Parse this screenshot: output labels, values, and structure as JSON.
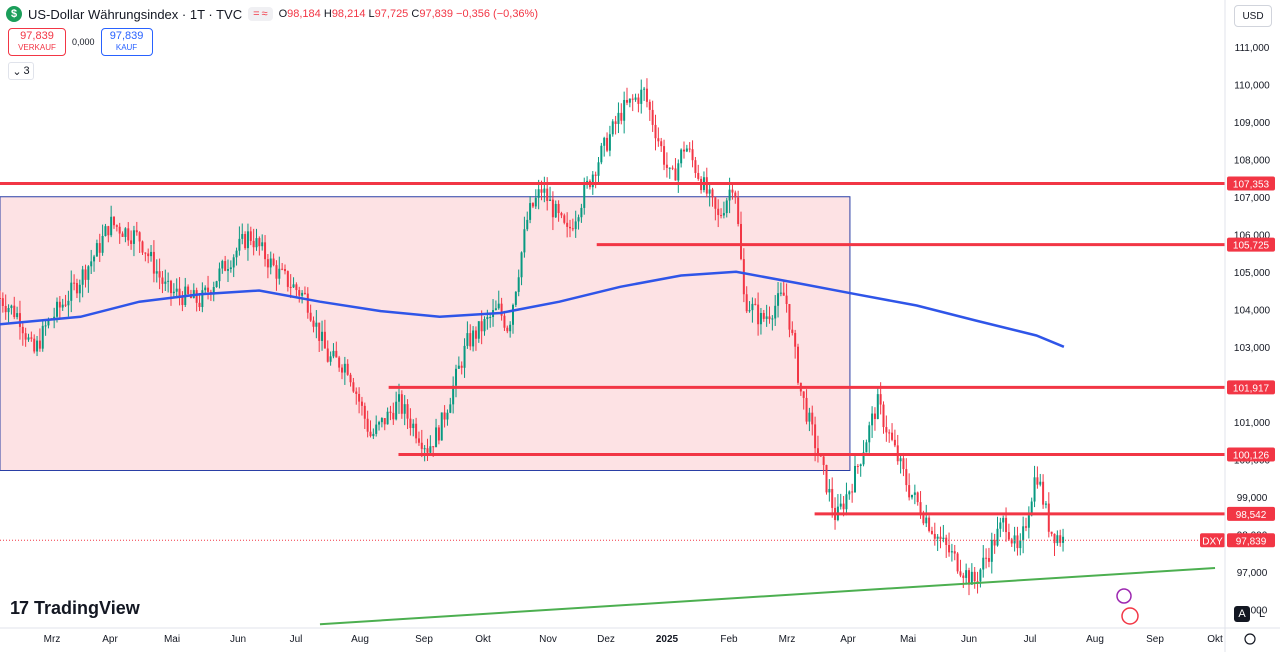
{
  "header": {
    "symbol_logo": "$",
    "title": "US-Dollar Währungsindex · 1T · TVC",
    "mini_buttons": [
      "=",
      "≈"
    ],
    "ohlc": {
      "o_label": "O",
      "o": "98,184",
      "h_label": "H",
      "h": "98,214",
      "l_label": "L",
      "l": "97,725",
      "c_label": "C",
      "c": "97,839",
      "change": "−0,356 (−0,36%)"
    }
  },
  "trade": {
    "sell_price": "97,839",
    "sell_label": "VERKAUF",
    "spread": "0,000",
    "buy_price": "97,839",
    "buy_label": "KAUF"
  },
  "indicators": {
    "icon": "chevron-down-icon",
    "count": "3"
  },
  "currency": "USD",
  "branding": "TradingView",
  "bottom_buttons": {
    "auto": "A",
    "log": "L"
  },
  "colors": {
    "up": "#089981",
    "down": "#f23645",
    "zone_fill": "#fde2e4",
    "zone_border": "#2a3fa5",
    "ma": "#2f55e8",
    "trend": "#4caf50",
    "level": "#f23645"
  },
  "chart_data": {
    "type": "candlestick",
    "symbol": "DXY",
    "last_price": "97,839",
    "y_axis": {
      "min": 95.5,
      "max": 111.5,
      "ticks": [
        "96,000",
        "97,000",
        "98,000",
        "99,000",
        "100,000",
        "101,000",
        "102,000",
        "103,000",
        "104,000",
        "105,000",
        "106,000",
        "107,000",
        "108,000",
        "109,000",
        "110,000",
        "111,000"
      ]
    },
    "x_axis": {
      "labels": [
        "Mrz",
        "Apr",
        "Mai",
        "Jun",
        "Jul",
        "Aug",
        "Sep",
        "Okt",
        "Nov",
        "Dez",
        "2025",
        "Feb",
        "Mrz",
        "Apr",
        "Mai",
        "Jun",
        "Jul",
        "Aug",
        "Sep",
        "Okt"
      ]
    },
    "horizontal_levels": [
      {
        "value": 107.353,
        "label": "107,353",
        "from": "2024-02-20"
      },
      {
        "value": 105.725,
        "label": "105,725",
        "from": "2024-12-20"
      },
      {
        "value": 101.917,
        "label": "101,917",
        "from": "2024-09-05"
      },
      {
        "value": 100.126,
        "label": "100,126",
        "from": "2024-09-10"
      },
      {
        "value": 98.542,
        "label": "98,542",
        "from": "2025-04-10"
      }
    ],
    "range_box": {
      "from": "2024-02-20",
      "to": "2025-04-28",
      "top": 107.0,
      "bottom": 99.7
    },
    "trendline": {
      "points": [
        [
          "2024-08-01",
          95.6
        ],
        [
          "2025-10-31",
          97.1
        ]
      ]
    },
    "moving_average": [
      [
        "2024-02-20",
        103.6
      ],
      [
        "2024-04-01",
        103.8
      ],
      [
        "2024-05-01",
        104.2
      ],
      [
        "2024-06-01",
        104.4
      ],
      [
        "2024-07-01",
        104.5
      ],
      [
        "2024-08-01",
        104.2
      ],
      [
        "2024-09-01",
        103.95
      ],
      [
        "2024-10-01",
        103.8
      ],
      [
        "2024-11-01",
        103.9
      ],
      [
        "2024-12-01",
        104.2
      ],
      [
        "2025-01-01",
        104.6
      ],
      [
        "2025-02-01",
        104.9
      ],
      [
        "2025-03-01",
        105.0
      ],
      [
        "2025-04-01",
        104.7
      ],
      [
        "2025-05-01",
        104.4
      ],
      [
        "2025-06-01",
        104.1
      ],
      [
        "2025-07-01",
        103.7
      ],
      [
        "2025-08-01",
        103.3
      ],
      [
        "2025-08-15",
        103.0
      ]
    ],
    "price_path": [
      [
        "2024-02-20",
        104.3
      ],
      [
        "2024-03-01",
        103.8
      ],
      [
        "2024-03-08",
        102.8
      ],
      [
        "2024-03-15",
        103.6
      ],
      [
        "2024-03-28",
        104.5
      ],
      [
        "2024-04-10",
        105.6
      ],
      [
        "2024-04-16",
        106.3
      ],
      [
        "2024-05-01",
        105.9
      ],
      [
        "2024-05-15",
        104.5
      ],
      [
        "2024-06-01",
        104.2
      ],
      [
        "2024-06-14",
        105.2
      ],
      [
        "2024-06-26",
        106.0
      ],
      [
        "2024-07-10",
        105.0
      ],
      [
        "2024-07-25",
        104.3
      ],
      [
        "2024-08-05",
        102.7
      ],
      [
        "2024-08-15",
        102.5
      ],
      [
        "2024-08-27",
        100.6
      ],
      [
        "2024-09-10",
        101.5
      ],
      [
        "2024-09-25",
        100.3
      ],
      [
        "2024-10-01",
        100.8
      ],
      [
        "2024-10-15",
        103.1
      ],
      [
        "2024-10-31",
        104.0
      ],
      [
        "2024-11-05",
        103.5
      ],
      [
        "2024-11-15",
        106.5
      ],
      [
        "2024-11-22",
        107.2
      ],
      [
        "2024-12-05",
        106.0
      ],
      [
        "2024-12-20",
        107.9
      ],
      [
        "2025-01-02",
        109.3
      ],
      [
        "2025-01-13",
        109.8
      ],
      [
        "2025-01-27",
        107.4
      ],
      [
        "2025-02-03",
        108.4
      ],
      [
        "2025-02-20",
        106.4
      ],
      [
        "2025-02-28",
        107.5
      ],
      [
        "2025-03-05",
        104.3
      ],
      [
        "2025-03-14",
        103.7
      ],
      [
        "2025-03-26",
        104.4
      ],
      [
        "2025-04-03",
        101.8
      ],
      [
        "2025-04-21",
        98.4
      ],
      [
        "2025-04-30",
        99.5
      ],
      [
        "2025-05-12",
        101.5
      ],
      [
        "2025-05-28",
        99.2
      ],
      [
        "2025-06-12",
        97.9
      ],
      [
        "2025-06-30",
        96.7
      ],
      [
        "2025-07-16",
        98.4
      ],
      [
        "2025-07-23",
        97.4
      ],
      [
        "2025-08-01",
        99.7
      ],
      [
        "2025-08-08",
        98.1
      ],
      [
        "2025-08-15",
        97.84
      ]
    ]
  }
}
